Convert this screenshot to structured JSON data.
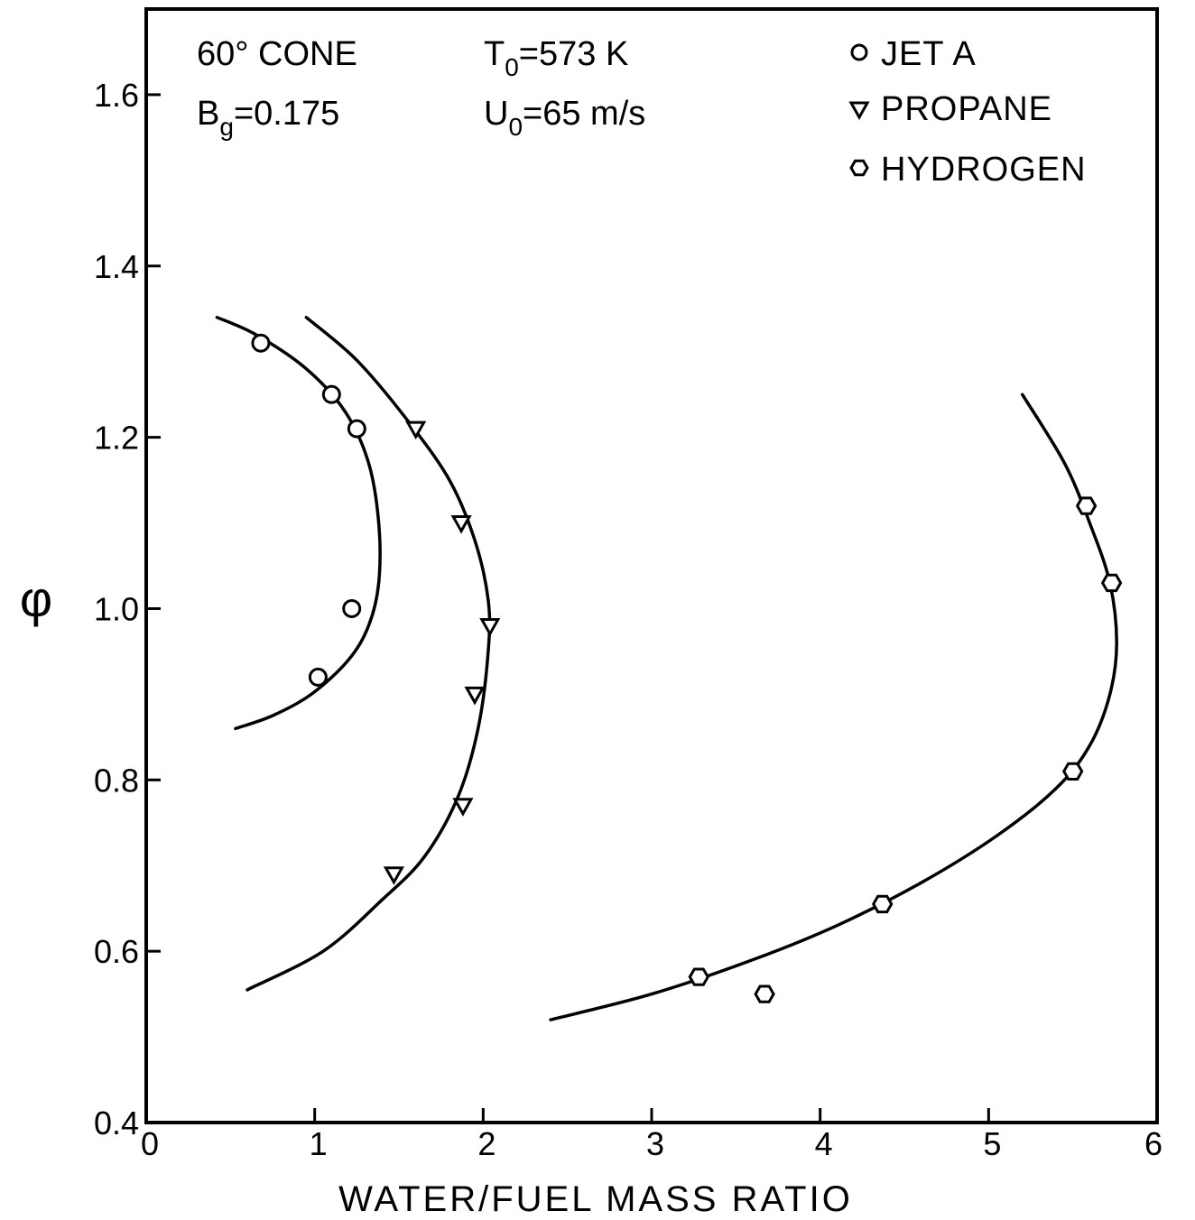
{
  "chart_data": {
    "type": "scatter",
    "title": "",
    "xlabel": "WATER/FUEL MASS RATIO",
    "ylabel": "φ",
    "xlim": [
      0,
      6
    ],
    "ylim": [
      0.4,
      1.7
    ],
    "x_ticks": [
      0,
      1,
      2,
      3,
      4,
      5,
      6
    ],
    "x_tick_labels": [
      "0",
      "1",
      "2",
      "3",
      "4",
      "5",
      "6"
    ],
    "y_ticks": [
      0.4,
      0.6,
      0.8,
      1.0,
      1.2,
      1.4,
      1.6
    ],
    "y_tick_labels": [
      "0.4",
      "0.6",
      "0.8",
      "1.0",
      "1.2",
      "1.4",
      "1.6"
    ],
    "grid": false,
    "legend_position": "top-right",
    "annotations": [
      {
        "text": "60° CONE"
      },
      {
        "text": "B",
        "sub": "g",
        "rest": "=0.175"
      },
      {
        "text": "T",
        "sub": "0",
        "rest": "=573 K"
      },
      {
        "text": "U",
        "sub": "0",
        "rest": "=65 m/s"
      }
    ],
    "series": [
      {
        "name": "JET A",
        "marker": "circle",
        "points": [
          [
            0.68,
            1.31
          ],
          [
            1.1,
            1.25
          ],
          [
            1.25,
            1.21
          ],
          [
            1.22,
            1.0
          ],
          [
            1.02,
            0.92
          ]
        ],
        "fit_curve": [
          [
            0.42,
            1.34
          ],
          [
            0.65,
            1.32
          ],
          [
            0.95,
            1.28
          ],
          [
            1.18,
            1.23
          ],
          [
            1.32,
            1.17
          ],
          [
            1.38,
            1.1
          ],
          [
            1.38,
            1.03
          ],
          [
            1.32,
            0.98
          ],
          [
            1.2,
            0.94
          ],
          [
            0.98,
            0.9
          ],
          [
            0.75,
            0.875
          ],
          [
            0.53,
            0.86
          ]
        ]
      },
      {
        "name": "PROPANE",
        "marker": "triangle-down",
        "points": [
          [
            1.6,
            1.21
          ],
          [
            1.87,
            1.1
          ],
          [
            2.04,
            0.98
          ],
          [
            1.95,
            0.9
          ],
          [
            1.88,
            0.77
          ],
          [
            1.47,
            0.69
          ]
        ],
        "fit_curve": [
          [
            0.95,
            1.34
          ],
          [
            1.25,
            1.29
          ],
          [
            1.55,
            1.22
          ],
          [
            1.8,
            1.15
          ],
          [
            1.95,
            1.08
          ],
          [
            2.03,
            1.01
          ],
          [
            2.03,
            0.95
          ],
          [
            1.97,
            0.86
          ],
          [
            1.85,
            0.78
          ],
          [
            1.65,
            0.71
          ],
          [
            1.4,
            0.66
          ],
          [
            1.05,
            0.6
          ],
          [
            0.6,
            0.555
          ]
        ]
      },
      {
        "name": "HYDROGEN",
        "marker": "hexagon",
        "points": [
          [
            5.58,
            1.12
          ],
          [
            5.73,
            1.03
          ],
          [
            5.5,
            0.81
          ],
          [
            4.37,
            0.655
          ],
          [
            3.28,
            0.57
          ],
          [
            3.67,
            0.55
          ]
        ],
        "fit_curve": [
          [
            5.2,
            1.25
          ],
          [
            5.45,
            1.17
          ],
          [
            5.6,
            1.1
          ],
          [
            5.72,
            1.03
          ],
          [
            5.76,
            0.96
          ],
          [
            5.72,
            0.9
          ],
          [
            5.6,
            0.84
          ],
          [
            5.4,
            0.79
          ],
          [
            5.05,
            0.735
          ],
          [
            4.6,
            0.68
          ],
          [
            4.1,
            0.63
          ],
          [
            3.6,
            0.59
          ],
          [
            3.0,
            0.55
          ],
          [
            2.4,
            0.52
          ]
        ]
      }
    ]
  }
}
